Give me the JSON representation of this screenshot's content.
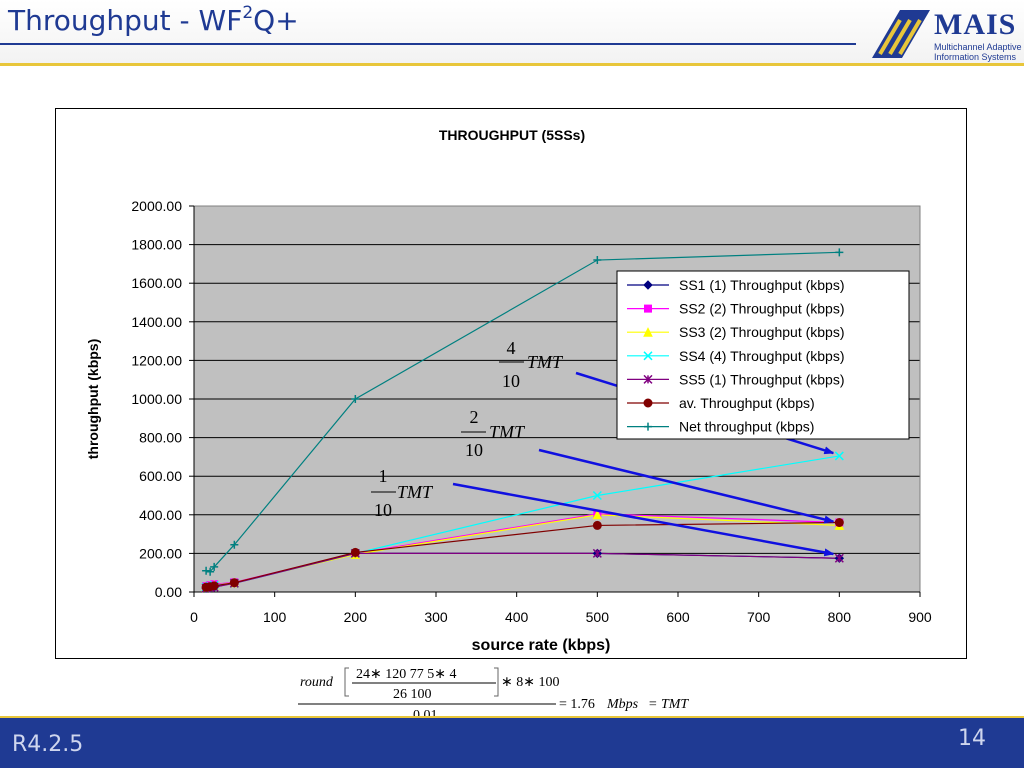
{
  "slide": {
    "title_main": "Throughput - WF",
    "title_sup": "2",
    "title_end": "Q+",
    "footer_left": "R4.2.5",
    "page_number": "14"
  },
  "logo": {
    "word": "MAIS",
    "line1": "Multichannel Adaptive",
    "line2": "Information Systems"
  },
  "annotations": [
    {
      "numerator": "4",
      "denominator": "10",
      "label": "TMT"
    },
    {
      "numerator": "2",
      "denominator": "10",
      "label": "TMT"
    },
    {
      "numerator": "1",
      "denominator": "10",
      "label": "TMT"
    }
  ],
  "formula": {
    "round": "round",
    "numerator": "24∗ 120 77 5∗ 4",
    "denominator": "26 100",
    "factor": "∗ 8∗ 100",
    "divisor": "0.01",
    "result": "= 1.76",
    "unit": "Mbps",
    "tail": "= TMT"
  },
  "chart_data": {
    "type": "line",
    "title": "THROUGHPUT (5SSs)",
    "xlabel": "source rate (kbps)",
    "ylabel": "throughput (kbps)",
    "xlim": [
      0,
      900
    ],
    "ylim": [
      0,
      2000
    ],
    "xticks": [
      "0",
      "100",
      "200",
      "300",
      "400",
      "500",
      "600",
      "700",
      "800",
      "900"
    ],
    "yticks": [
      "0.00",
      "200.00",
      "400.00",
      "600.00",
      "800.00",
      "1000.00",
      "1200.00",
      "1400.00",
      "1600.00",
      "1800.00",
      "2000.00"
    ],
    "grid": true,
    "plot_background": "#c0c0c0",
    "legend_position": "right",
    "series": [
      {
        "name": "SS1 (1) Throughput (kbps)",
        "color": "#000080",
        "marker": "diamond",
        "x": [
          15,
          20,
          25,
          50,
          200,
          500,
          800
        ],
        "y": [
          20,
          22,
          25,
          48,
          200,
          200,
          175
        ]
      },
      {
        "name": "SS2 (2) Throughput (kbps)",
        "color": "#ff00ff",
        "marker": "square",
        "x": [
          15,
          20,
          25,
          50,
          200,
          500,
          800
        ],
        "y": [
          30,
          35,
          40,
          50,
          200,
          405,
          360
        ]
      },
      {
        "name": "SS3 (2) Throughput (kbps)",
        "color": "#ffff00",
        "marker": "triangle",
        "x": [
          15,
          20,
          25,
          50,
          200,
          500,
          800
        ],
        "y": [
          25,
          30,
          35,
          48,
          195,
          400,
          345
        ]
      },
      {
        "name": "SS4 (4) Throughput (kbps)",
        "color": "#00ffff",
        "marker": "x",
        "x": [
          15,
          20,
          25,
          50,
          200,
          500,
          800
        ],
        "y": [
          25,
          30,
          35,
          45,
          200,
          500,
          705
        ]
      },
      {
        "name": "SS5 (1) Throughput (kbps)",
        "color": "#800080",
        "marker": "star",
        "x": [
          15,
          20,
          25,
          50,
          200,
          500,
          800
        ],
        "y": [
          20,
          22,
          25,
          45,
          200,
          200,
          175
        ]
      },
      {
        "name": "av. Throughput (kbps)",
        "color": "#800000",
        "marker": "circle",
        "x": [
          15,
          20,
          25,
          50,
          200,
          500,
          800
        ],
        "y": [
          25,
          28,
          32,
          48,
          205,
          345,
          360
        ]
      },
      {
        "name": "Net throughput (kbps)",
        "color": "#008080",
        "marker": "plus",
        "x": [
          15,
          20,
          25,
          50,
          200,
          500,
          800
        ],
        "y": [
          110,
          105,
          130,
          245,
          1000,
          1720,
          1760
        ]
      }
    ]
  }
}
